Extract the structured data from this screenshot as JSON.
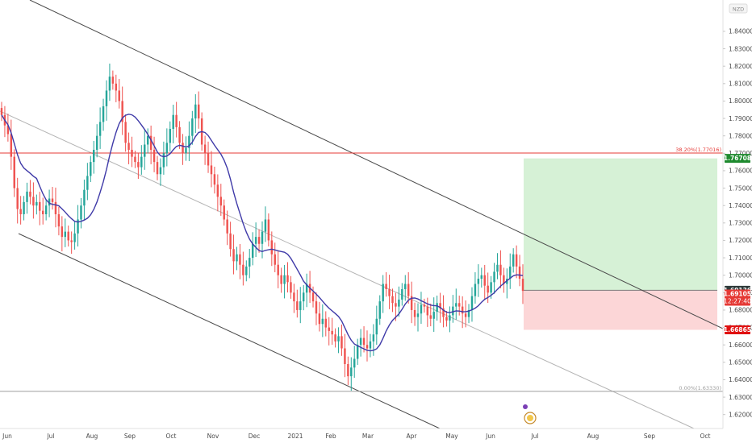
{
  "chart_data": {
    "type": "candlestick",
    "instrument_label": "NZD",
    "price_axis": {
      "range": [
        1.612,
        1.858
      ],
      "ticks": [
        "1.84000",
        "1.83000",
        "1.82000",
        "1.81000",
        "1.80000",
        "1.79000",
        "1.78000",
        "1.77000",
        "1.76000",
        "1.75000",
        "1.74000",
        "1.73000",
        "1.72000",
        "1.71000",
        "1.70000",
        "1.69000",
        "1.68000",
        "1.67000",
        "1.66000",
        "1.65000",
        "1.64000",
        "1.63000",
        "1.62000"
      ]
    },
    "time_axis": {
      "labels": [
        "Jun",
        "Jul",
        "Aug",
        "Sep",
        "Oct",
        "Nov",
        "Dec",
        "2021",
        "Feb",
        "Mar",
        "Apr",
        "May",
        "Jun",
        "Jul",
        "Aug",
        "Sep",
        "Oct"
      ]
    },
    "fib_levels": [
      {
        "label": "38.20%(1.77016)",
        "value": 1.77016,
        "color": "#e53935"
      },
      {
        "label": "0.00%(1.63330)",
        "value": 1.6333,
        "color": "#9e9e9e"
      }
    ],
    "price_tags": [
      {
        "text": "1.76708",
        "value": 1.76708,
        "color": "#1e8a2e"
      },
      {
        "text": "1.69136",
        "value": 1.69136,
        "color": "#2f3a3a"
      },
      {
        "text": "1.69105",
        "value": 1.69105,
        "color": "#e53935",
        "sub": "12:27:40"
      },
      {
        "text": "1.66865",
        "value": 1.66865,
        "color": "#e01010"
      }
    ],
    "position": {
      "entry": 1.69136,
      "target": 1.76708,
      "stop": 1.66865
    },
    "moving_average_color": "#3f3aa8",
    "up_color": "#26a69a",
    "down_color": "#ef5350",
    "closes": [
      1.792,
      1.786,
      1.781,
      1.768,
      1.75,
      1.738,
      1.735,
      1.742,
      1.748,
      1.745,
      1.74,
      1.742,
      1.737,
      1.735,
      1.74,
      1.744,
      1.742,
      1.735,
      1.728,
      1.722,
      1.725,
      1.72,
      1.719,
      1.724,
      1.732,
      1.74,
      1.749,
      1.757,
      1.765,
      1.772,
      1.78,
      1.788,
      1.797,
      1.806,
      1.814,
      1.81,
      1.806,
      1.8,
      1.788,
      1.776,
      1.772,
      1.768,
      1.765,
      1.762,
      1.768,
      1.775,
      1.78,
      1.772,
      1.765,
      1.758,
      1.762,
      1.77,
      1.776,
      1.784,
      1.792,
      1.785,
      1.776,
      1.77,
      1.773,
      1.78,
      1.79,
      1.798,
      1.79,
      1.775,
      1.77,
      1.763,
      1.758,
      1.752,
      1.745,
      1.74,
      1.732,
      1.724,
      1.715,
      1.708,
      1.712,
      1.706,
      1.7,
      1.705,
      1.71,
      1.718,
      1.722,
      1.718,
      1.725,
      1.732,
      1.72,
      1.712,
      1.706,
      1.7,
      1.695,
      1.7,
      1.696,
      1.69,
      1.685,
      1.68,
      1.685,
      1.69,
      1.695,
      1.69,
      1.685,
      1.678,
      1.672,
      1.675,
      1.67,
      1.668,
      1.666,
      1.662,
      1.665,
      1.658,
      1.649,
      1.642,
      1.647,
      1.652,
      1.66,
      1.664,
      1.66,
      1.658,
      1.662,
      1.666,
      1.675,
      1.685,
      1.695,
      1.692,
      1.688,
      1.684,
      1.682,
      1.686,
      1.692,
      1.695,
      1.688,
      1.68,
      1.676,
      1.678,
      1.683,
      1.682,
      1.677,
      1.675,
      1.679,
      1.684,
      1.681,
      1.676,
      1.674,
      1.677,
      1.682,
      1.684,
      1.682,
      1.678,
      1.676,
      1.68,
      1.688,
      1.695,
      1.698,
      1.7,
      1.694,
      1.69,
      1.696,
      1.702,
      1.706,
      1.7,
      1.695,
      1.698,
      1.705,
      1.712,
      1.705,
      1.698,
      1.691
    ]
  }
}
